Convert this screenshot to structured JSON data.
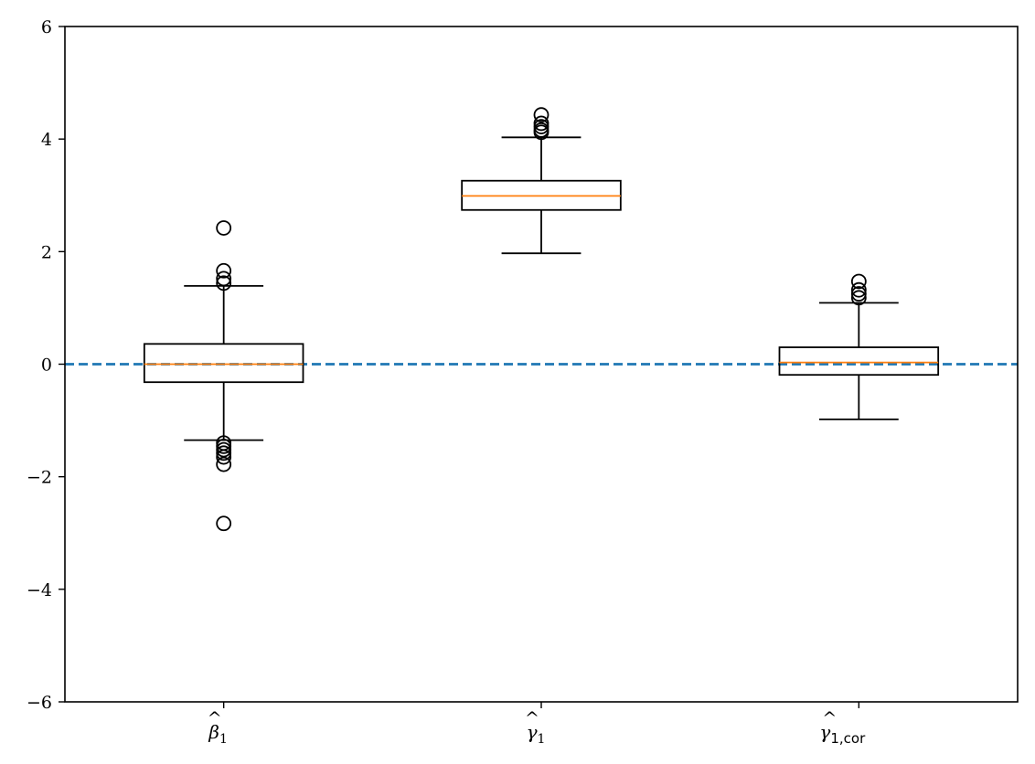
{
  "chart_data": {
    "type": "box",
    "categories": [
      {
        "base": "β",
        "sub": "1",
        "sub_style": "serif"
      },
      {
        "base": "γ",
        "sub": "1",
        "sub_style": "serif"
      },
      {
        "base": "γ",
        "sub": "1,cor",
        "sub_style": "mixed"
      }
    ],
    "boxes": [
      {
        "whislo": -1.35,
        "q1": -0.32,
        "med": 0.0,
        "q3": 0.36,
        "whishi": 1.39,
        "fliers": [
          2.42,
          1.66,
          1.52,
          1.44,
          -1.4,
          -1.46,
          -1.52,
          -1.58,
          -1.65,
          -1.78,
          -2.83
        ]
      },
      {
        "whislo": 1.97,
        "q1": 2.74,
        "med": 2.99,
        "q3": 3.26,
        "whishi": 4.03,
        "fliers": [
          4.43,
          4.28,
          4.22,
          4.16,
          4.12
        ]
      },
      {
        "whislo": -0.98,
        "q1": -0.19,
        "med": 0.03,
        "q3": 0.3,
        "whishi": 1.09,
        "fliers": [
          1.47,
          1.32,
          1.25,
          1.18
        ]
      }
    ],
    "reference_line": {
      "y": 0,
      "style": "dashed",
      "color": "#1f77b4"
    },
    "ylim": [
      -6,
      6
    ],
    "yticks": [
      -6,
      -4,
      -2,
      0,
      2,
      4,
      6
    ],
    "ytick_labels": [
      "−6",
      "−4",
      "−2",
      "0",
      "2",
      "4",
      "6"
    ],
    "title": "",
    "xlabel": "",
    "ylabel": "",
    "grid": false,
    "colors": {
      "median": "#ff7f0e",
      "box": "#000000",
      "reference": "#1f77b4"
    }
  }
}
